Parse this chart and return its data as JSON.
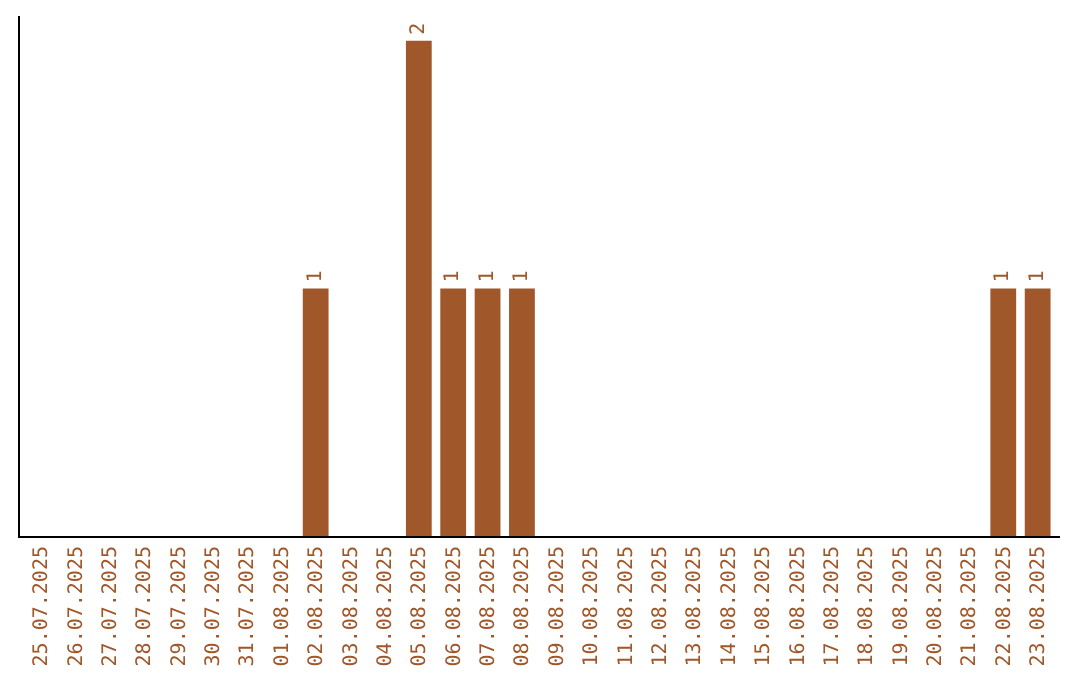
{
  "chart_data": {
    "type": "bar",
    "categories": [
      "25.07.2025",
      "26.07.2025",
      "27.07.2025",
      "28.07.2025",
      "29.07.2025",
      "30.07.2025",
      "31.07.2025",
      "01.08.2025",
      "02.08.2025",
      "03.08.2025",
      "04.08.2025",
      "05.08.2025",
      "06.08.2025",
      "07.08.2025",
      "08.08.2025",
      "09.08.2025",
      "10.08.2025",
      "11.08.2025",
      "12.08.2025",
      "13.08.2025",
      "14.08.2025",
      "15.08.2025",
      "16.08.2025",
      "17.08.2025",
      "18.08.2025",
      "19.08.2025",
      "20.08.2025",
      "21.08.2025",
      "22.08.2025",
      "23.08.2025"
    ],
    "values": [
      0,
      0,
      0,
      0,
      0,
      0,
      0,
      0,
      1,
      0,
      0,
      2,
      1,
      1,
      1,
      0,
      0,
      0,
      0,
      0,
      0,
      0,
      0,
      0,
      0,
      0,
      0,
      0,
      1,
      1
    ],
    "value_labels": [
      null,
      null,
      null,
      null,
      null,
      null,
      null,
      null,
      "1",
      null,
      null,
      "2",
      "1",
      "1",
      "1",
      null,
      null,
      null,
      null,
      null,
      null,
      null,
      null,
      null,
      null,
      null,
      null,
      null,
      "1",
      "1"
    ],
    "color": "#a0572a",
    "ylim": [
      0,
      2.1
    ],
    "tick_labels": "x"
  }
}
